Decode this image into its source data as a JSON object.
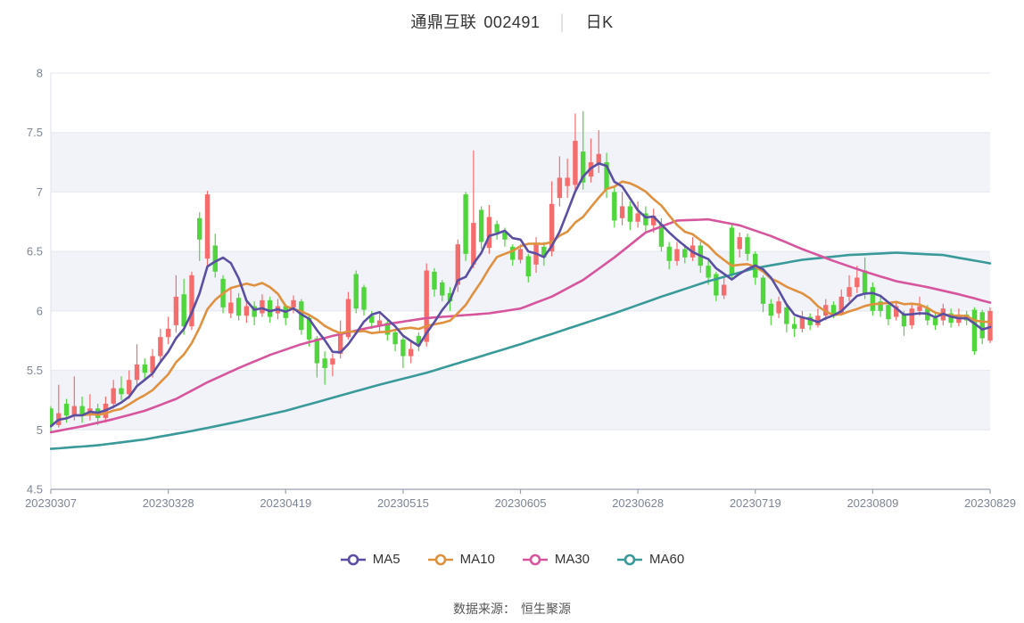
{
  "title": {
    "name": "通鼎互联",
    "code": "002491",
    "separator": "│",
    "period": "日K"
  },
  "footer": {
    "source_label": "数据来源：",
    "source_value": "恒生聚源"
  },
  "legend": [
    {
      "label": "MA5",
      "color": "#5a4fa2"
    },
    {
      "label": "MA10",
      "color": "#e0913f"
    },
    {
      "label": "MA30",
      "color": "#d6559d"
    },
    {
      "label": "MA60",
      "color": "#3a9a99"
    }
  ],
  "chart_data": {
    "type": "candlestick",
    "title": "通鼎互联 002491 日K",
    "xlabel": "",
    "ylabel": "",
    "ylim": [
      4.5,
      8
    ],
    "y_ticks": [
      8,
      7.5,
      7,
      6.5,
      6,
      5.5,
      5,
      4.5
    ],
    "x_tick_labels": [
      "20230307",
      "20230328",
      "20230419",
      "20230515",
      "20230605",
      "20230628",
      "20230719",
      "20230809",
      "20230829"
    ],
    "x_tick_indices": [
      0,
      15,
      30,
      45,
      60,
      75,
      90,
      105,
      120
    ],
    "grid": true,
    "legend_position": "bottom",
    "colors": {
      "up": "#f56c6c",
      "down": "#50d53d",
      "band": "#f1f3f9",
      "grid": "#e4e7f0",
      "axis": "#9aa1ad",
      "tick_text": "#7d8593"
    },
    "candle_format": [
      "open",
      "close",
      "high",
      "low"
    ],
    "candles": [
      [
        5.18,
        5.03,
        5.2,
        4.98
      ],
      [
        5.04,
        5.14,
        5.38,
        5.02
      ],
      [
        5.22,
        5.12,
        5.26,
        5.06
      ],
      [
        5.12,
        5.2,
        5.45,
        5.08
      ],
      [
        5.2,
        5.12,
        5.28,
        5.06
      ],
      [
        5.12,
        5.18,
        5.3,
        5.08
      ],
      [
        5.18,
        5.1,
        5.22,
        5.04
      ],
      [
        5.1,
        5.22,
        5.28,
        5.06
      ],
      [
        5.22,
        5.35,
        5.42,
        5.18
      ],
      [
        5.35,
        5.3,
        5.45,
        5.25
      ],
      [
        5.3,
        5.42,
        5.5,
        5.26
      ],
      [
        5.42,
        5.55,
        5.72,
        5.38
      ],
      [
        5.55,
        5.48,
        5.6,
        5.42
      ],
      [
        5.48,
        5.62,
        5.68,
        5.44
      ],
      [
        5.62,
        5.78,
        5.85,
        5.58
      ],
      [
        5.78,
        5.85,
        5.95,
        5.72
      ],
      [
        5.88,
        6.12,
        6.3,
        5.82
      ],
      [
        6.14,
        5.87,
        6.27,
        5.8
      ],
      [
        5.87,
        6.3,
        6.33,
        5.84
      ],
      [
        6.78,
        6.6,
        6.83,
        6.42
      ],
      [
        6.44,
        6.98,
        7.01,
        6.35
      ],
      [
        6.55,
        6.33,
        6.65,
        6.28
      ],
      [
        6.27,
        6.03,
        6.3,
        5.98
      ],
      [
        5.98,
        6.07,
        6.2,
        5.94
      ],
      [
        6.11,
        5.96,
        6.15,
        5.92
      ],
      [
        5.96,
        6.04,
        6.1,
        5.9
      ],
      [
        6.04,
        5.95,
        6.08,
        5.88
      ],
      [
        5.98,
        6.09,
        6.14,
        5.95
      ],
      [
        6.09,
        5.95,
        6.12,
        5.9
      ],
      [
        5.98,
        6.04,
        6.1,
        5.93
      ],
      [
        6.04,
        5.94,
        6.06,
        5.88
      ],
      [
        6.03,
        6.09,
        6.13,
        5.98
      ],
      [
        6.08,
        5.84,
        6.1,
        5.8
      ],
      [
        5.94,
        5.76,
        5.96,
        5.7
      ],
      [
        5.77,
        5.56,
        5.79,
        5.44
      ],
      [
        5.6,
        5.52,
        5.66,
        5.38
      ],
      [
        5.55,
        5.6,
        5.64,
        5.45
      ],
      [
        5.64,
        5.82,
        5.92,
        5.6
      ],
      [
        5.78,
        6.1,
        6.16,
        5.76
      ],
      [
        6.31,
        6.02,
        6.34,
        5.98
      ],
      [
        6.2,
        6.01,
        6.22,
        5.96
      ],
      [
        5.96,
        5.9,
        6.0,
        5.85
      ],
      [
        5.88,
        5.92,
        5.98,
        5.82
      ],
      [
        5.9,
        5.8,
        5.93,
        5.75
      ],
      [
        5.82,
        5.72,
        5.85,
        5.66
      ],
      [
        5.76,
        5.62,
        5.78,
        5.52
      ],
      [
        5.62,
        5.68,
        5.74,
        5.56
      ],
      [
        5.79,
        5.71,
        5.82,
        5.66
      ],
      [
        5.74,
        6.34,
        6.4,
        5.7
      ],
      [
        6.33,
        6.18,
        6.36,
        6.12
      ],
      [
        6.24,
        6.13,
        6.26,
        6.08
      ],
      [
        6.15,
        6.08,
        6.2,
        6.0
      ],
      [
        6.22,
        6.56,
        6.6,
        6.16
      ],
      [
        6.98,
        6.48,
        7.0,
        6.42
      ],
      [
        6.39,
        6.74,
        7.35,
        6.36
      ],
      [
        6.85,
        6.58,
        6.88,
        6.52
      ],
      [
        6.53,
        6.79,
        6.89,
        6.48
      ],
      [
        6.73,
        6.66,
        6.76,
        6.6
      ],
      [
        6.66,
        6.6,
        6.7,
        6.54
      ],
      [
        6.54,
        6.43,
        6.56,
        6.38
      ],
      [
        6.43,
        6.52,
        6.56,
        6.4
      ],
      [
        6.46,
        6.29,
        6.48,
        6.24
      ],
      [
        6.39,
        6.57,
        6.62,
        6.32
      ],
      [
        6.54,
        6.45,
        6.58,
        6.38
      ],
      [
        6.5,
        6.9,
        7.09,
        6.46
      ],
      [
        6.95,
        7.12,
        7.3,
        6.88
      ],
      [
        7.05,
        7.12,
        7.28,
        6.95
      ],
      [
        7.06,
        7.43,
        7.66,
        7.0
      ],
      [
        7.34,
        7.08,
        7.68,
        7.02
      ],
      [
        7.13,
        7.25,
        7.45,
        7.08
      ],
      [
        7.24,
        7.32,
        7.52,
        7.16
      ],
      [
        7.25,
        7.02,
        7.33,
        6.95
      ],
      [
        7.0,
        6.76,
        7.05,
        6.7
      ],
      [
        6.78,
        6.88,
        7.0,
        6.72
      ],
      [
        6.88,
        6.75,
        6.92,
        6.68
      ],
      [
        6.75,
        6.82,
        6.92,
        6.7
      ],
      [
        6.82,
        6.72,
        6.88,
        6.65
      ],
      [
        6.72,
        6.8,
        6.86,
        6.66
      ],
      [
        6.73,
        6.54,
        6.78,
        6.5
      ],
      [
        6.54,
        6.42,
        6.58,
        6.35
      ],
      [
        6.42,
        6.52,
        6.58,
        6.38
      ],
      [
        6.52,
        6.45,
        6.56,
        6.4
      ],
      [
        6.45,
        6.55,
        6.62,
        6.42
      ],
      [
        6.55,
        6.38,
        6.58,
        6.32
      ],
      [
        6.38,
        6.28,
        6.42,
        6.22
      ],
      [
        6.31,
        6.13,
        6.33,
        6.08
      ],
      [
        6.13,
        6.22,
        6.28,
        6.1
      ],
      [
        6.7,
        6.31,
        6.73,
        6.28
      ],
      [
        6.52,
        6.62,
        6.66,
        6.45
      ],
      [
        6.62,
        6.48,
        6.65,
        6.42
      ],
      [
        6.48,
        6.28,
        6.5,
        6.22
      ],
      [
        6.28,
        6.06,
        6.3,
        5.99
      ],
      [
        6.06,
        5.96,
        6.1,
        5.88
      ],
      [
        5.98,
        6.08,
        6.12,
        5.94
      ],
      [
        6.03,
        5.89,
        6.05,
        5.82
      ],
      [
        5.89,
        5.85,
        5.95,
        5.78
      ],
      [
        5.85,
        5.95,
        6.0,
        5.82
      ],
      [
        5.95,
        5.88,
        5.98,
        5.84
      ],
      [
        5.88,
        5.96,
        6.02,
        5.86
      ],
      [
        5.96,
        6.05,
        6.1,
        5.92
      ],
      [
        6.05,
        5.98,
        6.08,
        5.94
      ],
      [
        5.98,
        6.12,
        6.18,
        5.96
      ],
      [
        6.12,
        6.2,
        6.3,
        6.08
      ],
      [
        6.2,
        6.28,
        6.38,
        6.15
      ],
      [
        6.34,
        6.15,
        6.45,
        6.1
      ],
      [
        6.2,
        6.0,
        6.24,
        5.96
      ],
      [
        6.08,
        6.0,
        6.12,
        5.95
      ],
      [
        6.05,
        5.93,
        6.08,
        5.88
      ],
      [
        5.95,
        6.04,
        6.08,
        5.92
      ],
      [
        5.98,
        5.87,
        6.0,
        5.79
      ],
      [
        5.88,
        6.02,
        6.06,
        5.85
      ],
      [
        6.0,
        6.04,
        6.12,
        5.96
      ],
      [
        6.02,
        5.92,
        6.05,
        5.88
      ],
      [
        5.94,
        5.88,
        5.98,
        5.84
      ],
      [
        5.92,
        6.02,
        6.06,
        5.88
      ],
      [
        5.98,
        5.9,
        6.02,
        5.86
      ],
      [
        5.9,
        5.97,
        6.02,
        5.87
      ],
      [
        5.97,
        5.92,
        6.0,
        5.88
      ],
      [
        6.01,
        5.66,
        6.03,
        5.63
      ],
      [
        5.99,
        5.77,
        6.01,
        5.72
      ],
      [
        5.75,
        6.0,
        6.03,
        5.73
      ]
    ],
    "series": [
      {
        "name": "MA5",
        "type": "moving_average",
        "window": 5,
        "color": "#5a4fa2",
        "derived_from": "candles"
      },
      {
        "name": "MA10",
        "type": "moving_average",
        "window": 10,
        "color": "#e0913f",
        "derived_from": "candles"
      },
      {
        "name": "MA30",
        "type": "moving_average",
        "window": 30,
        "color": "#d6559d",
        "points": [
          [
            0,
            4.98
          ],
          [
            4,
            5.03
          ],
          [
            8,
            5.09
          ],
          [
            12,
            5.16
          ],
          [
            16,
            5.26
          ],
          [
            20,
            5.4
          ],
          [
            24,
            5.52
          ],
          [
            28,
            5.63
          ],
          [
            32,
            5.72
          ],
          [
            36,
            5.79
          ],
          [
            40,
            5.85
          ],
          [
            44,
            5.9
          ],
          [
            48,
            5.94
          ],
          [
            52,
            5.96
          ],
          [
            56,
            5.98
          ],
          [
            60,
            6.02
          ],
          [
            64,
            6.12
          ],
          [
            68,
            6.26
          ],
          [
            72,
            6.45
          ],
          [
            76,
            6.66
          ],
          [
            80,
            6.76
          ],
          [
            84,
            6.77
          ],
          [
            88,
            6.72
          ],
          [
            92,
            6.63
          ],
          [
            96,
            6.52
          ],
          [
            100,
            6.42
          ],
          [
            104,
            6.33
          ],
          [
            108,
            6.25
          ],
          [
            112,
            6.2
          ],
          [
            116,
            6.14
          ],
          [
            120,
            6.07
          ]
        ]
      },
      {
        "name": "MA60",
        "type": "moving_average",
        "window": 60,
        "color": "#3a9a99",
        "points": [
          [
            0,
            4.84
          ],
          [
            6,
            4.87
          ],
          [
            12,
            4.92
          ],
          [
            18,
            4.99
          ],
          [
            24,
            5.07
          ],
          [
            30,
            5.16
          ],
          [
            36,
            5.27
          ],
          [
            42,
            5.38
          ],
          [
            48,
            5.48
          ],
          [
            54,
            5.6
          ],
          [
            60,
            5.72
          ],
          [
            66,
            5.85
          ],
          [
            72,
            5.98
          ],
          [
            78,
            6.12
          ],
          [
            84,
            6.25
          ],
          [
            90,
            6.36
          ],
          [
            96,
            6.43
          ],
          [
            102,
            6.47
          ],
          [
            108,
            6.49
          ],
          [
            114,
            6.47
          ],
          [
            120,
            6.4
          ]
        ]
      }
    ]
  }
}
